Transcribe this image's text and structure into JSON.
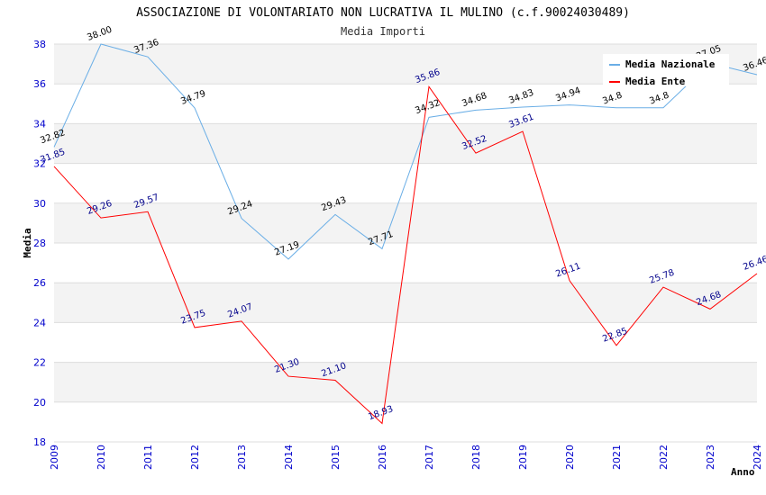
{
  "chart_data": {
    "type": "line",
    "title": "ASSOCIAZIONE DI VOLONTARIATO NON LUCRATIVA IL MULINO (c.f.90024030489)",
    "subtitle": "Media Importi",
    "xlabel": "Anno",
    "ylabel": "Media",
    "ylim": [
      18,
      38
    ],
    "yticks": [
      18,
      20,
      22,
      24,
      26,
      28,
      30,
      32,
      34,
      36,
      38
    ],
    "grid": true,
    "legend_position": "top-right",
    "x": [
      "2009",
      "2010",
      "2011",
      "2012",
      "2013",
      "2014",
      "2015",
      "2016",
      "2017",
      "2018",
      "2019",
      "2020",
      "2021",
      "2022",
      "2023",
      "2024"
    ],
    "series": [
      {
        "name": "Media Nazionale",
        "color": "#6aaee6",
        "values": [
          32.82,
          38.0,
          37.36,
          34.79,
          29.24,
          27.19,
          29.43,
          27.71,
          34.32,
          34.68,
          34.83,
          34.94,
          34.8,
          34.8,
          37.05,
          36.46
        ],
        "labels": [
          "32.82",
          "38.00",
          "37.36",
          "34.79",
          "29.24",
          "27.19",
          "29.43",
          "27.71",
          "34.32",
          "34.68",
          "34.83",
          "34.94",
          "34.8",
          "34.8",
          "37.05",
          "36.46"
        ]
      },
      {
        "name": "Media Ente",
        "color": "#ff0000",
        "values": [
          31.85,
          29.26,
          29.57,
          23.75,
          24.07,
          21.3,
          21.1,
          18.93,
          35.86,
          32.52,
          33.61,
          26.11,
          22.85,
          25.78,
          24.68,
          26.46
        ],
        "labels": [
          "31.85",
          "29.26",
          "29.57",
          "23.75",
          "24.07",
          "21.30",
          "21.10",
          "18.93",
          "35.86",
          "32.52",
          "33.61",
          "26.11",
          "22.85",
          "25.78",
          "24.68",
          "26.46"
        ]
      }
    ]
  }
}
